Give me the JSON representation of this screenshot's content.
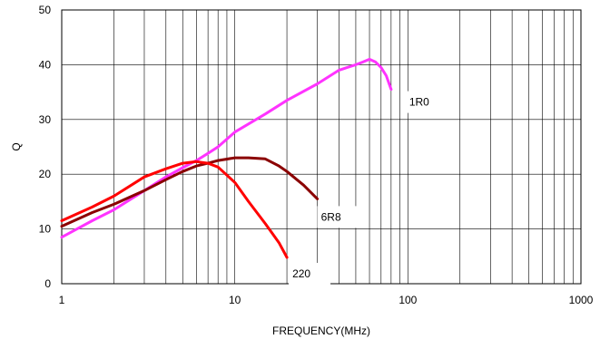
{
  "chart_data": {
    "type": "line",
    "title": "",
    "xlabel": "FREQUENCY(MHz)",
    "ylabel": "Q",
    "xscale": "log",
    "xlim": [
      1,
      1000
    ],
    "ylim": [
      0,
      50
    ],
    "xticks": [
      1,
      10,
      100,
      1000
    ],
    "xtick_labels": [
      "1",
      "10",
      "100",
      "1000"
    ],
    "yticks": [
      0,
      10,
      20,
      30,
      40,
      50
    ],
    "ytick_labels": [
      "0",
      "10",
      "20",
      "30",
      "40",
      "50"
    ],
    "grid": true,
    "legend": "none",
    "series": [
      {
        "name": "1R0",
        "color": "#ff33ff",
        "x": [
          1,
          1.5,
          2,
          3,
          4,
          5,
          6,
          7,
          8,
          10,
          15,
          20,
          30,
          40,
          50,
          55,
          60,
          65,
          70,
          75,
          80
        ],
        "y": [
          8.5,
          11.5,
          13.5,
          17,
          19.5,
          21.2,
          22.5,
          23.8,
          25,
          27.7,
          31,
          33.5,
          36.5,
          39,
          40,
          40.5,
          41,
          40.5,
          39.5,
          38,
          35.5
        ]
      },
      {
        "name": "6R8",
        "color": "#8b0000",
        "x": [
          1,
          1.5,
          2,
          3,
          4,
          5,
          6,
          7,
          8,
          10,
          12,
          15,
          18,
          20,
          25,
          30
        ],
        "y": [
          10.5,
          13,
          14.5,
          17,
          19,
          20.5,
          21.5,
          22,
          22.5,
          23,
          23,
          22.8,
          21.5,
          20.5,
          18,
          15.5
        ]
      },
      {
        "name": "220",
        "color": "#ff0000",
        "x": [
          1,
          1.5,
          2,
          3,
          4,
          5,
          6,
          7,
          8,
          10,
          12,
          15,
          18,
          20
        ],
        "y": [
          11.5,
          14,
          16,
          19.5,
          21,
          22,
          22.3,
          22,
          21.3,
          18.5,
          15,
          11,
          7.5,
          4.8
        ]
      }
    ]
  }
}
